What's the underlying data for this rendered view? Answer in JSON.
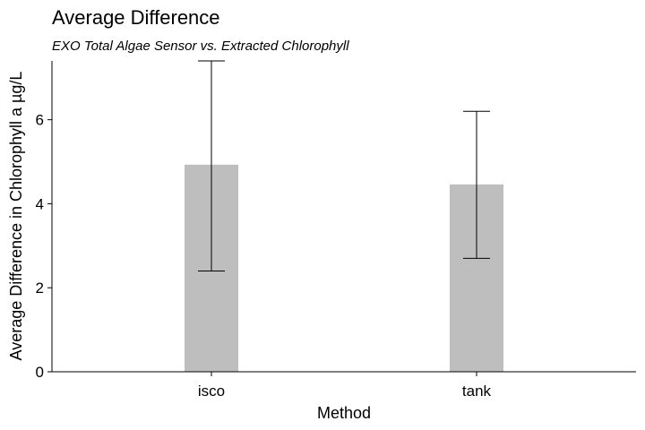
{
  "chart_data": {
    "type": "bar",
    "title": "Average Difference",
    "subtitle": "EXO Total Algae Sensor vs. Extracted Chlorophyll",
    "xlabel": "Method",
    "ylabel": "Average Difference in Chlorophyll a µg/L",
    "categories": [
      "isco",
      "tank"
    ],
    "values": [
      4.93,
      4.46
    ],
    "error_low": [
      2.4,
      2.7
    ],
    "error_high": [
      7.4,
      6.2
    ],
    "ylim": [
      0,
      7.4
    ],
    "yticks": [
      0,
      2,
      4,
      6
    ],
    "bar_color": "#bebebe",
    "grid": false
  }
}
